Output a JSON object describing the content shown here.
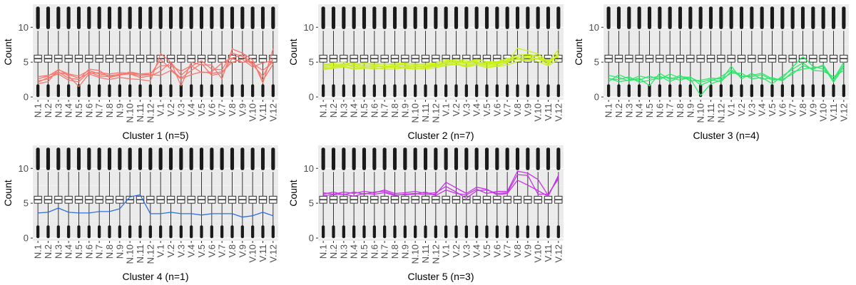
{
  "chart_data": [
    {
      "type": "line",
      "title": "",
      "xlabel": "Cluster 1 (n=5)",
      "ylabel": "Count",
      "ylim": [
        -0.4,
        13.3
      ],
      "yticks": [
        0,
        5,
        10
      ],
      "grid": true,
      "categories": [
        "N.1",
        "N.2",
        "N.3",
        "N.4",
        "N.5",
        "N.6",
        "N.7",
        "N.8",
        "N.9",
        "N.10",
        "N.11",
        "N.12",
        "V.1",
        "V.2",
        "V.3",
        "V.4",
        "V.5",
        "V.6",
        "V.7",
        "V.8",
        "V.9",
        "V.10",
        "V.11",
        "V.12"
      ],
      "color": "#F8766D",
      "boxplot": {
        "whisker_low": 1.8,
        "q1": 5.0,
        "median": 5.5,
        "q3": 6.0,
        "whisker_high": 9.5,
        "outliers_low": [
          0.2,
          1.6
        ],
        "outliers_high": [
          10.0,
          12.8
        ]
      },
      "series": [
        {
          "values": [
            2.6,
            3.0,
            3.9,
            3.3,
            3.0,
            3.8,
            3.3,
            3.1,
            3.2,
            3.3,
            3.1,
            3.2,
            3.1,
            3.8,
            2.6,
            3.2,
            3.6,
            3.4,
            3.6,
            5.0,
            5.4,
            4.3,
            4.9,
            5.2
          ]
        },
        {
          "values": [
            1.9,
            2.2,
            4.0,
            3.0,
            1.5,
            3.3,
            2.8,
            2.5,
            2.8,
            2.6,
            2.5,
            2.3,
            6.2,
            5.0,
            1.6,
            5.0,
            4.6,
            4.6,
            2.6,
            6.9,
            6.3,
            5.3,
            2.0,
            6.9
          ]
        },
        {
          "values": [
            2.1,
            2.8,
            3.3,
            2.4,
            2.2,
            3.6,
            3.0,
            2.9,
            3.3,
            3.3,
            2.8,
            3.0,
            3.7,
            5.0,
            3.1,
            4.4,
            5.2,
            4.0,
            3.9,
            6.3,
            5.8,
            4.6,
            3.0,
            5.5
          ]
        },
        {
          "values": [
            2.3,
            2.6,
            3.6,
            2.7,
            2.5,
            4.0,
            3.8,
            2.8,
            3.1,
            3.6,
            3.3,
            3.2,
            5.4,
            4.0,
            2.7,
            3.8,
            4.8,
            3.1,
            3.4,
            5.5,
            5.0,
            5.1,
            2.4,
            4.7
          ]
        },
        {
          "values": [
            2.9,
            3.1,
            3.5,
            3.2,
            2.7,
            3.4,
            3.5,
            3.3,
            3.5,
            3.4,
            3.3,
            3.4,
            4.5,
            4.5,
            3.7,
            4.5,
            3.5,
            3.6,
            4.9,
            5.6,
            6.0,
            4.8,
            3.8,
            5.0
          ]
        }
      ]
    },
    {
      "type": "line",
      "title": "",
      "xlabel": "Cluster 2 (n=7)",
      "ylabel": "Count",
      "ylim": [
        -0.4,
        13.3
      ],
      "yticks": [
        0,
        5,
        10
      ],
      "grid": true,
      "categories": [
        "N.1",
        "N.2",
        "N.3",
        "N.4",
        "N.5",
        "N.6",
        "N.7",
        "N.8",
        "N.9",
        "N.10",
        "N.11",
        "N.12",
        "V.1",
        "V.2",
        "V.3",
        "V.4",
        "V.5",
        "V.6",
        "V.7",
        "V.8",
        "V.9",
        "V.10",
        "V.11",
        "V.12"
      ],
      "color": "#C8F01E",
      "boxplot": {
        "whisker_low": 1.8,
        "q1": 5.0,
        "median": 5.5,
        "q3": 6.0,
        "whisker_high": 9.5,
        "outliers_low": [
          0.2,
          1.6
        ],
        "outliers_high": [
          10.0,
          12.8
        ]
      },
      "series": [
        {
          "values": [
            4.3,
            4.5,
            4.8,
            4.4,
            4.6,
            4.5,
            4.4,
            4.5,
            4.6,
            4.4,
            4.5,
            4.6,
            4.9,
            5.0,
            4.8,
            5.1,
            4.7,
            4.9,
            5.2,
            5.4,
            5.3,
            5.6,
            5.2,
            5.8
          ]
        },
        {
          "values": [
            4.0,
            4.3,
            4.4,
            4.1,
            4.2,
            4.0,
            4.2,
            4.3,
            4.1,
            4.0,
            4.2,
            4.4,
            4.6,
            4.9,
            4.4,
            4.8,
            4.4,
            4.5,
            4.9,
            7.0,
            6.6,
            6.2,
            5.0,
            6.8
          ]
        },
        {
          "values": [
            4.6,
            4.9,
            5.0,
            4.7,
            4.8,
            4.8,
            4.7,
            4.8,
            4.9,
            4.6,
            4.8,
            4.9,
            5.3,
            5.2,
            5.0,
            5.4,
            5.0,
            5.1,
            5.5,
            5.7,
            5.9,
            5.8,
            4.6,
            6.3
          ]
        },
        {
          "values": [
            4.8,
            4.4,
            4.6,
            4.9,
            4.4,
            4.3,
            4.5,
            4.2,
            4.4,
            4.5,
            4.4,
            4.6,
            5.1,
            5.4,
            5.2,
            5.0,
            4.9,
            4.8,
            5.0,
            5.5,
            5.6,
            5.4,
            5.3,
            5.7
          ]
        },
        {
          "values": [
            3.9,
            4.1,
            4.3,
            4.0,
            4.1,
            4.2,
            4.0,
            4.0,
            4.2,
            4.1,
            4.0,
            4.2,
            4.5,
            4.7,
            4.3,
            4.6,
            4.2,
            4.4,
            4.6,
            5.1,
            5.3,
            5.1,
            4.5,
            5.4
          ]
        },
        {
          "values": [
            4.5,
            4.7,
            4.5,
            4.6,
            4.9,
            4.6,
            4.8,
            4.6,
            4.7,
            4.8,
            4.6,
            4.7,
            5.0,
            5.1,
            4.9,
            5.3,
            5.1,
            5.0,
            5.3,
            6.0,
            6.1,
            5.9,
            4.9,
            6.0
          ]
        },
        {
          "values": [
            4.2,
            4.2,
            4.7,
            4.3,
            4.3,
            4.4,
            4.3,
            4.4,
            4.3,
            4.3,
            4.3,
            4.5,
            4.8,
            4.6,
            4.6,
            4.9,
            4.6,
            4.7,
            5.1,
            5.8,
            5.7,
            5.5,
            4.7,
            6.1
          ]
        }
      ]
    },
    {
      "type": "line",
      "title": "",
      "xlabel": "Cluster 3 (n=4)",
      "ylabel": "Count",
      "ylim": [
        -0.4,
        13.3
      ],
      "yticks": [
        0,
        5,
        10
      ],
      "grid": true,
      "categories": [
        "N.1",
        "N.2",
        "N.3",
        "N.4",
        "N.5",
        "N.6",
        "N.7",
        "N.8",
        "N.9",
        "N.10",
        "N.11",
        "N.12",
        "V.1",
        "V.2",
        "V.3",
        "V.4",
        "V.5",
        "V.6",
        "V.7",
        "V.8",
        "V.9",
        "V.10",
        "V.11",
        "V.12"
      ],
      "color": "#2DE86A",
      "boxplot": {
        "whisker_low": 1.8,
        "q1": 5.0,
        "median": 5.5,
        "q3": 6.0,
        "whisker_high": 9.5,
        "outliers_low": [
          0.2,
          1.6
        ],
        "outliers_high": [
          10.0,
          12.8
        ]
      },
      "series": [
        {
          "values": [
            2.2,
            3.2,
            2.6,
            2.4,
            3.0,
            2.5,
            3.3,
            2.7,
            2.6,
            0.2,
            1.9,
            2.4,
            4.4,
            2.6,
            3.4,
            2.5,
            2.8,
            2.3,
            3.6,
            4.0,
            4.2,
            4.4,
            2.1,
            4.3
          ]
        },
        {
          "values": [
            2.6,
            2.5,
            2.9,
            2.1,
            2.4,
            2.8,
            2.8,
            2.4,
            2.9,
            1.7,
            2.3,
            2.9,
            3.9,
            3.0,
            2.9,
            3.2,
            2.4,
            2.7,
            4.3,
            5.8,
            4.4,
            4.0,
            2.5,
            5.0
          ]
        },
        {
          "values": [
            3.1,
            2.8,
            2.3,
            2.7,
            1.6,
            3.4,
            2.5,
            3.1,
            2.3,
            2.4,
            2.7,
            2.6,
            3.4,
            3.4,
            2.6,
            2.8,
            1.9,
            3.0,
            4.0,
            4.9,
            3.8,
            3.7,
            2.9,
            3.8
          ]
        },
        {
          "values": [
            2.7,
            2.2,
            2.4,
            3.0,
            2.7,
            3.0,
            2.2,
            2.9,
            2.8,
            2.1,
            2.5,
            2.2,
            3.7,
            2.9,
            3.1,
            3.4,
            2.6,
            2.5,
            3.3,
            4.5,
            4.0,
            4.6,
            2.4,
            4.6
          ]
        }
      ]
    },
    {
      "type": "line",
      "title": "",
      "xlabel": "Cluster 4 (n=1)",
      "ylabel": "Count",
      "ylim": [
        -0.4,
        13.3
      ],
      "yticks": [
        0,
        5,
        10
      ],
      "grid": true,
      "categories": [
        "N.1",
        "N.2",
        "N.3",
        "N.4",
        "N.5",
        "N.6",
        "N.7",
        "N.8",
        "N.9",
        "N.10",
        "N.11",
        "N.12",
        "V.1",
        "V.2",
        "V.3",
        "V.4",
        "V.5",
        "V.6",
        "V.7",
        "V.8",
        "V.9",
        "V.10",
        "V.11",
        "V.12"
      ],
      "color": "#2F6FE0",
      "boxplot": {
        "whisker_low": 1.8,
        "q1": 5.0,
        "median": 5.5,
        "q3": 6.0,
        "whisker_high": 9.5,
        "outliers_low": [
          0.2,
          1.6
        ],
        "outliers_high": [
          10.0,
          12.8
        ]
      },
      "series": [
        {
          "values": [
            3.6,
            3.7,
            4.3,
            3.7,
            3.6,
            3.6,
            3.8,
            3.8,
            4.2,
            5.9,
            6.2,
            3.5,
            3.5,
            3.7,
            3.5,
            3.5,
            3.3,
            3.5,
            3.5,
            3.5,
            3.0,
            3.2,
            3.7,
            3.2
          ]
        }
      ]
    },
    {
      "type": "line",
      "title": "",
      "xlabel": "Cluster 5 (n=3)",
      "ylabel": "Count",
      "ylim": [
        -0.4,
        13.3
      ],
      "yticks": [
        0,
        5,
        10
      ],
      "grid": true,
      "categories": [
        "N.1",
        "N.2",
        "N.3",
        "N.4",
        "N.5",
        "N.6",
        "N.7",
        "N.8",
        "N.9",
        "N.10",
        "N.11",
        "N.12",
        "V.1",
        "V.2",
        "V.3",
        "V.4",
        "V.5",
        "V.6",
        "V.7",
        "V.8",
        "V.9",
        "V.10",
        "V.11",
        "V.12"
      ],
      "color": "#C533E8",
      "boxplot": {
        "whisker_low": 1.8,
        "q1": 5.0,
        "median": 5.5,
        "q3": 6.0,
        "whisker_high": 9.5,
        "outliers_low": [
          0.2,
          1.6
        ],
        "outliers_high": [
          10.0,
          12.8
        ]
      },
      "series": [
        {
          "values": [
            6.5,
            6.3,
            6.6,
            6.4,
            6.7,
            6.5,
            6.9,
            6.4,
            6.5,
            6.7,
            6.4,
            6.5,
            7.4,
            6.6,
            5.7,
            6.8,
            6.9,
            6.4,
            6.5,
            9.1,
            9.0,
            6.3,
            6.3,
            8.5
          ]
        },
        {
          "values": [
            6.1,
            6.2,
            6.3,
            6.0,
            6.4,
            6.3,
            6.5,
            6.1,
            6.3,
            6.4,
            6.2,
            6.3,
            8.0,
            7.2,
            6.4,
            7.3,
            7.0,
            6.2,
            6.4,
            8.3,
            7.6,
            6.8,
            6.0,
            9.0
          ]
        },
        {
          "values": [
            6.3,
            6.6,
            6.2,
            6.6,
            6.3,
            6.6,
            6.7,
            6.2,
            6.2,
            6.3,
            6.6,
            6.1,
            6.9,
            6.4,
            6.2,
            7.0,
            6.4,
            6.7,
            6.7,
            9.6,
            9.3,
            8.4,
            6.1,
            8.8
          ]
        }
      ]
    }
  ]
}
